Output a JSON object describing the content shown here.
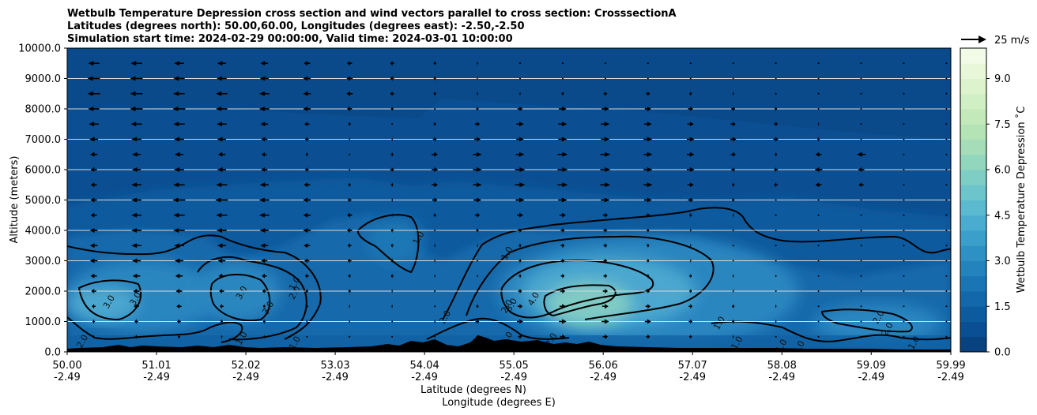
{
  "title": {
    "line1": "Wetbulb Temperature Depression cross section and wind vectors parallel to cross section: CrosssectionA",
    "line2": "Latitudes (degrees north): 50.00,60.00, Longitudes (degrees east): -2.50,-2.50",
    "line3": "Simulation start time: 2024-02-29 00:00:00, Valid time: 2024-03-01 10:00:00"
  },
  "axes": {
    "ylabel": "Altitude (meters)",
    "xlabel_lat": "Latitude (degrees N)",
    "xlabel_lon": "Longitude (degrees E)"
  },
  "colorbar": {
    "label": "Wetbulb Temperature Depression ˚C",
    "ticks": [
      "0.0",
      "1.5",
      "3.0",
      "4.5",
      "6.0",
      "7.5",
      "9.0"
    ],
    "quiver_key": "25 m/s"
  },
  "chart_data": {
    "type": "heatmap",
    "variable": "Wetbulb Temperature Depression",
    "units": "°C",
    "x_lat_ticks": [
      "50.00",
      "51.01",
      "52.02",
      "53.03",
      "54.04",
      "55.05",
      "56.06",
      "57.07",
      "58.08",
      "59.09",
      "59.99"
    ],
    "x_lon_ticks": [
      "-2.49",
      "-2.49",
      "-2.49",
      "-2.49",
      "-2.49",
      "-2.49",
      "-2.49",
      "-2.49",
      "-2.49",
      "-2.49",
      "-2.49"
    ],
    "y_ticks": [
      "0.0",
      "1000.0",
      "2000.0",
      "3000.0",
      "4000.0",
      "5000.0",
      "6000.0",
      "7000.0",
      "8000.0",
      "9000.0",
      "10000.0"
    ],
    "xlim": [
      50.0,
      59.99
    ],
    "ylim": [
      0,
      10000
    ],
    "colorbar_range": [
      0.0,
      10.0
    ],
    "colormap": "GnBu_r",
    "grid": "horizontal",
    "contour_levels": [
      1.0,
      2.0,
      3.0,
      4.0
    ],
    "contour_labels": [
      {
        "text": "1.0",
        "lat": 54.0,
        "alt": 3700
      },
      {
        "text": "1.0",
        "lat": 52.6,
        "alt": 2200
      },
      {
        "text": "2.0",
        "lat": 52.6,
        "alt": 1900
      },
      {
        "text": "3.0",
        "lat": 52.0,
        "alt": 1900
      },
      {
        "text": "3.0",
        "lat": 52.3,
        "alt": 1400
      },
      {
        "text": "3.0",
        "lat": 50.8,
        "alt": 1700
      },
      {
        "text": "3.0",
        "lat": 50.5,
        "alt": 1600
      },
      {
        "text": "2.0",
        "lat": 50.2,
        "alt": 300
      },
      {
        "text": "1.0",
        "lat": 52.0,
        "alt": 400
      },
      {
        "text": "1.0",
        "lat": 52.6,
        "alt": 250
      },
      {
        "text": "2.0",
        "lat": 54.3,
        "alt": 1100
      },
      {
        "text": "1.0",
        "lat": 55.0,
        "alt": 3200
      },
      {
        "text": "4.0",
        "lat": 55.3,
        "alt": 1700
      },
      {
        "text": "3.0",
        "lat": 55.05,
        "alt": 1500
      },
      {
        "text": "2.0",
        "lat": 55.0,
        "alt": 1450
      },
      {
        "text": "1.0",
        "lat": 55.0,
        "alt": 400
      },
      {
        "text": "2.0",
        "lat": 55.5,
        "alt": 350
      },
      {
        "text": "1.0",
        "lat": 57.4,
        "alt": 900
      },
      {
        "text": "1.0",
        "lat": 57.6,
        "alt": 250
      },
      {
        "text": "1.0",
        "lat": 58.1,
        "alt": 150
      },
      {
        "text": "2.0",
        "lat": 58.3,
        "alt": 100
      },
      {
        "text": "2.0",
        "lat": 59.2,
        "alt": 1100
      },
      {
        "text": "2.0",
        "lat": 59.3,
        "alt": 700
      },
      {
        "text": "1.0",
        "lat": 59.6,
        "alt": 250
      }
    ],
    "wind_vectors_note": "horizontal wind components parallel to cross section, sampled every 500 m",
    "wind_vectors_ref": {
      "speed": 25,
      "units": "m/s"
    },
    "wind_rows": [
      {
        "alt": 9500,
        "u": [
          -9,
          -9,
          -8,
          -7,
          -6,
          -5,
          -4,
          -3,
          -2,
          -1,
          0,
          0,
          0,
          0,
          0,
          0,
          0,
          0,
          0,
          0,
          0
        ]
      },
      {
        "alt": 9000,
        "u": [
          -10,
          -10,
          -9,
          -8,
          -7,
          -6,
          -5,
          -3,
          -2,
          -1,
          0,
          0,
          0,
          0,
          0,
          0,
          0,
          0,
          0,
          0,
          0
        ]
      },
      {
        "alt": 8500,
        "u": [
          -10,
          -10,
          -9,
          -9,
          -8,
          -6,
          -5,
          -3,
          -2,
          -1,
          1,
          2,
          3,
          3,
          2,
          1,
          0,
          0,
          0,
          0,
          0
        ]
      },
      {
        "alt": 8000,
        "u": [
          -9,
          -10,
          -10,
          -9,
          -8,
          -6,
          -4,
          -2,
          0,
          2,
          4,
          6,
          6,
          5,
          4,
          3,
          2,
          0,
          0,
          0,
          0
        ]
      },
      {
        "alt": 7500,
        "u": [
          -8,
          -9,
          -9,
          -8,
          -6,
          -4,
          -2,
          0,
          2,
          4,
          6,
          7,
          7,
          6,
          5,
          4,
          3,
          1,
          0,
          0,
          0
        ]
      },
      {
        "alt": 7000,
        "u": [
          -7,
          -8,
          -8,
          -7,
          -5,
          -3,
          -1,
          1,
          3,
          5,
          6,
          7,
          7,
          7,
          6,
          5,
          4,
          2,
          0,
          0,
          0
        ]
      },
      {
        "alt": 6500,
        "u": [
          -6,
          -7,
          -7,
          -6,
          -4,
          -2,
          0,
          2,
          5,
          7,
          7,
          8,
          8,
          7,
          6,
          4,
          2,
          -5,
          -7,
          0,
          0
        ]
      },
      {
        "alt": 6000,
        "u": [
          -5,
          -7,
          -8,
          -7,
          -5,
          -3,
          0,
          3,
          5,
          7,
          8,
          8,
          8,
          7,
          6,
          3,
          -3,
          -6,
          -5,
          0,
          0
        ]
      },
      {
        "alt": 5500,
        "u": [
          -5,
          -8,
          -9,
          -9,
          -7,
          -5,
          -2,
          2,
          5,
          7,
          8,
          8,
          8,
          7,
          5,
          2,
          -3,
          -5,
          -4,
          0,
          0
        ]
      },
      {
        "alt": 5000,
        "u": [
          -5,
          -8,
          -10,
          -10,
          -8,
          -6,
          -3,
          1,
          4,
          6,
          7,
          7,
          7,
          6,
          4,
          2,
          0,
          0,
          0,
          0,
          0
        ]
      },
      {
        "alt": 4500,
        "u": [
          -5,
          -8,
          -9,
          -9,
          -8,
          -6,
          -4,
          -1,
          2,
          4,
          5,
          5,
          4,
          3,
          2,
          1,
          0,
          0,
          0,
          0,
          0
        ]
      },
      {
        "alt": 4000,
        "u": [
          -6,
          -8,
          -9,
          -8,
          -7,
          -6,
          -4,
          -2,
          0,
          2,
          3,
          3,
          3,
          2,
          1,
          0,
          0,
          0,
          0,
          0,
          0
        ]
      },
      {
        "alt": 3500,
        "u": [
          -6,
          -8,
          -8,
          -7,
          -6,
          -5,
          -3,
          -2,
          -1,
          1,
          2,
          3,
          3,
          2,
          1,
          0,
          0,
          0,
          0,
          0,
          0
        ]
      },
      {
        "alt": 3000,
        "u": [
          -6,
          -7,
          -7,
          -6,
          -5,
          -4,
          -3,
          -2,
          -1,
          0,
          2,
          3,
          3,
          2,
          1,
          0,
          0,
          0,
          0,
          0,
          0
        ]
      },
      {
        "alt": 2500,
        "u": [
          -5,
          -6,
          -6,
          -5,
          -4,
          -3,
          -2,
          -2,
          -1,
          0,
          2,
          3,
          3,
          2,
          2,
          1,
          0,
          0,
          0,
          0,
          0
        ]
      },
      {
        "alt": 2000,
        "u": [
          -4,
          -5,
          -5,
          -4,
          -3,
          -2,
          -2,
          -1,
          0,
          1,
          3,
          4,
          4,
          3,
          2,
          1,
          0,
          0,
          0,
          0,
          0
        ]
      },
      {
        "alt": 1500,
        "u": [
          -3,
          -4,
          -4,
          -3,
          -2,
          -2,
          -1,
          -1,
          0,
          2,
          4,
          5,
          5,
          4,
          3,
          2,
          1,
          0,
          0,
          0,
          0
        ]
      },
      {
        "alt": 1000,
        "u": [
          -2,
          -3,
          -3,
          -2,
          -2,
          -1,
          -1,
          0,
          1,
          3,
          5,
          6,
          6,
          5,
          3,
          2,
          1,
          0,
          0,
          0,
          0
        ]
      },
      {
        "alt": 500,
        "u": [
          -1,
          -2,
          -2,
          -1,
          -1,
          0,
          0,
          0,
          1,
          2,
          3,
          4,
          4,
          3,
          2,
          1,
          0,
          0,
          0,
          0,
          0
        ]
      }
    ]
  }
}
